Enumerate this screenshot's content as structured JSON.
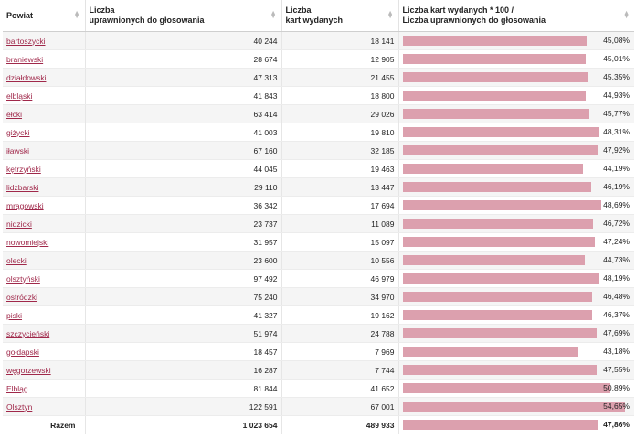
{
  "headers": {
    "col1": "Powiat",
    "col2_line1": "Liczba",
    "col2_line2": "uprawnionych do głosowania",
    "col3_line1": "Liczba",
    "col3_line2": "kart wydanych",
    "col4_line1": "Liczba kart wydanych * 100 /",
    "col4_line2": "Liczba uprawnionych do głosowania"
  },
  "rows": [
    {
      "name": "bartoszycki",
      "eligible": "40 244",
      "issued": "18 141",
      "percent": "45,08%",
      "percent_value": 45.08
    },
    {
      "name": "braniewski",
      "eligible": "28 674",
      "issued": "12 905",
      "percent": "45,01%",
      "percent_value": 45.01
    },
    {
      "name": "działdowski",
      "eligible": "47 313",
      "issued": "21 455",
      "percent": "45,35%",
      "percent_value": 45.35
    },
    {
      "name": "elbląski",
      "eligible": "41 843",
      "issued": "18 800",
      "percent": "44,93%",
      "percent_value": 44.93
    },
    {
      "name": "ełcki",
      "eligible": "63 414",
      "issued": "29 026",
      "percent": "45,77%",
      "percent_value": 45.77
    },
    {
      "name": "giżycki",
      "eligible": "41 003",
      "issued": "19 810",
      "percent": "48,31%",
      "percent_value": 48.31
    },
    {
      "name": "iławski",
      "eligible": "67 160",
      "issued": "32 185",
      "percent": "47,92%",
      "percent_value": 47.92
    },
    {
      "name": "kętrzyński",
      "eligible": "44 045",
      "issued": "19 463",
      "percent": "44,19%",
      "percent_value": 44.19
    },
    {
      "name": "lidzbarski",
      "eligible": "29 110",
      "issued": "13 447",
      "percent": "46,19%",
      "percent_value": 46.19
    },
    {
      "name": "mrągowski",
      "eligible": "36 342",
      "issued": "17 694",
      "percent": "48,69%",
      "percent_value": 48.69
    },
    {
      "name": "nidzicki",
      "eligible": "23 737",
      "issued": "11 089",
      "percent": "46,72%",
      "percent_value": 46.72
    },
    {
      "name": "nowomiejski",
      "eligible": "31 957",
      "issued": "15 097",
      "percent": "47,24%",
      "percent_value": 47.24
    },
    {
      "name": "olecki",
      "eligible": "23 600",
      "issued": "10 556",
      "percent": "44,73%",
      "percent_value": 44.73
    },
    {
      "name": "olsztyński",
      "eligible": "97 492",
      "issued": "46 979",
      "percent": "48,19%",
      "percent_value": 48.19
    },
    {
      "name": "ostródzki",
      "eligible": "75 240",
      "issued": "34 970",
      "percent": "46,48%",
      "percent_value": 46.48
    },
    {
      "name": "piski",
      "eligible": "41 327",
      "issued": "19 162",
      "percent": "46,37%",
      "percent_value": 46.37
    },
    {
      "name": "szczycieński",
      "eligible": "51 974",
      "issued": "24 788",
      "percent": "47,69%",
      "percent_value": 47.69
    },
    {
      "name": "gołdapski",
      "eligible": "18 457",
      "issued": "7 969",
      "percent": "43,18%",
      "percent_value": 43.18
    },
    {
      "name": "węgorzewski",
      "eligible": "16 287",
      "issued": "7 744",
      "percent": "47,55%",
      "percent_value": 47.55
    },
    {
      "name": "Elbląg",
      "eligible": "81 844",
      "issued": "41 652",
      "percent": "50,89%",
      "percent_value": 50.89
    },
    {
      "name": "Olsztyn",
      "eligible": "122 591",
      "issued": "67 001",
      "percent": "54,65%",
      "percent_value": 54.65
    }
  ],
  "total": {
    "label": "Razem",
    "eligible": "1 023 654",
    "issued": "489 933",
    "percent": "47,86%",
    "percent_value": 47.86
  },
  "colors": {
    "bar": "#dca0ae",
    "link": "#a0284a"
  }
}
